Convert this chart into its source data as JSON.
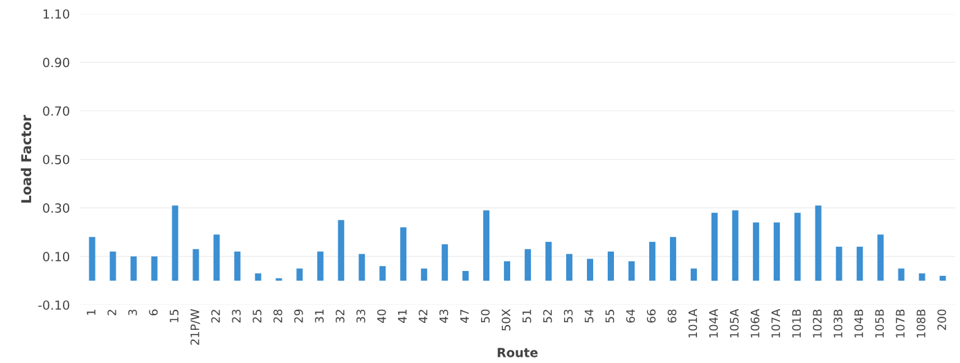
{
  "chart_data": {
    "type": "bar",
    "xlabel": "Route",
    "ylabel": "Load Factor",
    "categories": [
      "1",
      "2",
      "3",
      "6",
      "15",
      "21P/W",
      "22",
      "23",
      "25",
      "28",
      "29",
      "31",
      "32",
      "33",
      "40",
      "41",
      "42",
      "43",
      "47",
      "50",
      "50X",
      "51",
      "52",
      "53",
      "54",
      "55",
      "64",
      "66",
      "68",
      "101A",
      "104A",
      "105A",
      "106A",
      "107A",
      "101B",
      "102B",
      "103B",
      "104B",
      "105B",
      "107B",
      "108B",
      "200"
    ],
    "values": [
      0.18,
      0.12,
      0.1,
      0.1,
      0.31,
      0.13,
      0.19,
      0.12,
      0.03,
      0.01,
      0.05,
      0.12,
      0.25,
      0.11,
      0.06,
      0.22,
      0.05,
      0.15,
      0.04,
      0.29,
      0.08,
      0.13,
      0.16,
      0.11,
      0.09,
      0.12,
      0.08,
      0.16,
      0.18,
      0.05,
      0.28,
      0.29,
      0.24,
      0.24,
      0.28,
      0.31,
      0.14,
      0.14,
      0.19,
      0.05,
      0.03,
      0.02
    ],
    "color": "#3b8fd2",
    "ylim": [
      -0.1,
      1.1
    ],
    "yticks": [
      {
        "value": -0.1,
        "label": "-0.10"
      },
      {
        "value": 0.1,
        "label": "0.10"
      },
      {
        "value": 0.3,
        "label": "0.30"
      },
      {
        "value": 0.5,
        "label": "0.50"
      },
      {
        "value": 0.7,
        "label": "0.70"
      },
      {
        "value": 0.9,
        "label": "0.90"
      },
      {
        "value": 1.1,
        "label": "1.10"
      }
    ],
    "grid": "y"
  }
}
